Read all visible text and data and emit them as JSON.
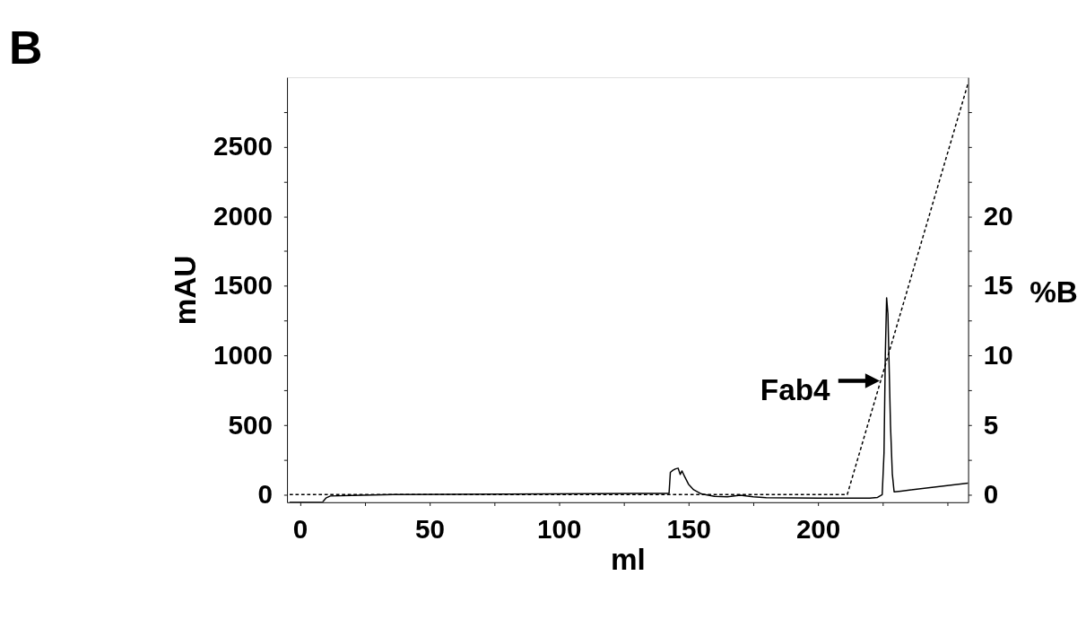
{
  "chart_data": {
    "type": "line",
    "title": "B",
    "xlabel": "ml",
    "ylabel": "mAU",
    "y2label": "%B",
    "xlim": [
      -5,
      258
    ],
    "xticks": [
      0,
      {
        "value": 25,
        "label": null
      },
      50,
      {
        "value": 75,
        "label": null
      },
      100,
      {
        "value": 125,
        "label": null
      },
      150,
      {
        "value": 175,
        "label": null
      },
      200,
      {
        "value": 225,
        "label": null
      },
      {
        "value": 250,
        "label": null
      }
    ],
    "ylim": [
      -55,
      3000
    ],
    "yticks": [
      0,
      {
        "value": 250,
        "label": null
      },
      500,
      {
        "value": 750,
        "label": null
      },
      1000,
      {
        "value": 1250,
        "label": null
      },
      1500,
      {
        "value": 1750,
        "label": null
      },
      2000,
      {
        "value": 2250,
        "label": null
      },
      2500,
      {
        "value": 2750,
        "label": null
      }
    ],
    "y2lim": [
      -0.55,
      30
    ],
    "y2ticks": [
      0,
      {
        "value": 2.5,
        "label": null
      },
      5,
      {
        "value": 7.5,
        "label": null
      },
      10,
      {
        "value": 12.5,
        "label": null
      },
      15,
      {
        "value": 17.5,
        "label": null
      },
      20,
      {
        "value": 22.5,
        "label": null
      },
      {
        "value": 25,
        "label": null
      },
      {
        "value": 27.5,
        "label": null
      }
    ],
    "grid": false,
    "series": [
      {
        "color": "#000000",
        "line_style": "solid",
        "x": [
          -4,
          8.7,
          10,
          11.7,
          20,
          36,
          80,
          130,
          142.5,
          143,
          144,
          145,
          146,
          146.8,
          147.5,
          148.5,
          150,
          152,
          155,
          160,
          165,
          170,
          175,
          180,
          200,
          220,
          223,
          224.8,
          225.5,
          226,
          226.5,
          227,
          227.5,
          228,
          228.7,
          229.4,
          232,
          258
        ],
        "values": [
          -54,
          -54,
          -25,
          -10,
          -6,
          0,
          3,
          8,
          8,
          160,
          175,
          185,
          190,
          145,
          170,
          130,
          75,
          35,
          5,
          -12,
          -15,
          -5,
          -15,
          -22,
          -25,
          -25,
          -20,
          0,
          300,
          1000,
          1415,
          1300,
          900,
          500,
          150,
          20,
          25,
          82
        ]
      },
      {
        "color": "#000000",
        "axis": "y2",
        "line_style": "dashed",
        "x": [
          -4,
          211.3,
          258
        ],
        "values": [
          0,
          0,
          29.6
        ]
      }
    ],
    "annotations": [
      {
        "text": "Fab4",
        "x": 224.5,
        "y": 818
      }
    ]
  }
}
